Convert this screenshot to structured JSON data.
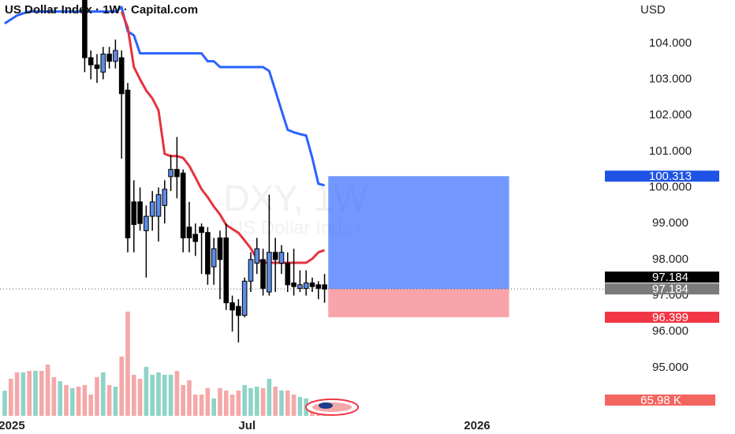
{
  "chart_data": {
    "type": "candlestick",
    "title": "US Dollar Index · 1W · Capital.com",
    "currency": "USD",
    "watermark": [
      "DXY, 1W",
      "US Dollar Index"
    ],
    "xlim": [
      -0.77,
      98.6
    ],
    "xticks": [
      {
        "value": 1.15,
        "label": "2025"
      },
      {
        "value": 39.4,
        "label": "Jul"
      },
      {
        "value": 76.8,
        "label": "2026"
      }
    ],
    "ylim": [
      93.16,
      105.2
    ],
    "yticks": [
      {
        "value": 95,
        "label": "95.000"
      },
      {
        "value": 96,
        "label": "96.000"
      },
      {
        "value": 97,
        "label": "97.000"
      },
      {
        "value": 98,
        "label": "98.000"
      },
      {
        "value": 99,
        "label": "99.000"
      },
      {
        "value": 100,
        "label": "100.000"
      },
      {
        "value": 101,
        "label": "101.000"
      },
      {
        "value": 102,
        "label": "102.000"
      },
      {
        "value": 103,
        "label": "103.000"
      },
      {
        "value": 104,
        "label": "104.000"
      }
    ],
    "up_color": "#5b8ce6",
    "down_color": "#000000",
    "open": [
      null,
      null,
      null,
      null,
      null,
      null,
      null,
      null,
      null,
      null,
      null,
      null,
      null,
      105.5,
      103.6,
      103.4,
      103.2,
      103.7,
      103.5,
      103.6,
      102.7,
      99.6,
      99.6,
      98.8,
      99.2,
      99.2,
      99.5,
      100.3,
      100.5,
      100.4,
      98.9,
      98.7,
      98.9,
      98.75,
      97.8,
      98.6,
      98.6,
      96.8,
      96.7,
      96.45,
      97.4,
      97.9,
      98.0,
      97.1,
      98.2,
      97.9,
      97.9,
      97.35,
      97.2,
      97.2,
      97.35,
      97.3,
      97.3
    ],
    "high": [
      null,
      null,
      null,
      null,
      null,
      null,
      null,
      null,
      null,
      null,
      null,
      null,
      null,
      106.5,
      103.8,
      103.7,
      103.9,
      103.9,
      104.1,
      103.8,
      102.9,
      100.2,
      100.0,
      99.5,
      99.9,
      100.0,
      100.2,
      100.9,
      101.4,
      100.5,
      99.6,
      99.0,
      99.0,
      98.9,
      98.6,
      98.8,
      99.0,
      97.0,
      96.9,
      97.5,
      98.2,
      98.6,
      98.3,
      99.8,
      98.6,
      98.4,
      98.2,
      98.3,
      97.7,
      97.7,
      97.5,
      97.4,
      97.6
    ],
    "low": [
      null,
      null,
      null,
      null,
      null,
      null,
      null,
      null,
      null,
      null,
      null,
      null,
      null,
      103.2,
      103.0,
      102.9,
      103.0,
      103.3,
      103.3,
      100.8,
      98.2,
      98.2,
      98.8,
      97.5,
      98.8,
      98.5,
      99.0,
      99.9,
      99.7,
      98.2,
      98.2,
      98.1,
      97.6,
      97.3,
      97.3,
      96.9,
      96.6,
      96.0,
      95.7,
      96.4,
      97.1,
      97.6,
      97.0,
      97.0,
      97.1,
      97.6,
      97.1,
      97.0,
      97.1,
      97.0,
      97.1,
      96.9,
      96.8
    ],
    "close": [
      null,
      null,
      null,
      null,
      null,
      null,
      null,
      null,
      null,
      null,
      null,
      null,
      null,
      103.6,
      103.4,
      103.3,
      103.7,
      103.5,
      103.8,
      102.6,
      98.6,
      98.97,
      99.0,
      99.2,
      99.6,
      99.8,
      99.95,
      100.5,
      100.3,
      98.6,
      98.6,
      98.5,
      98.75,
      97.6,
      98.3,
      98.0,
      96.8,
      96.6,
      96.45,
      97.4,
      98.0,
      98.3,
      97.2,
      98.2,
      98.0,
      98.2,
      97.3,
      97.25,
      97.3,
      97.35,
      97.25,
      97.2,
      97.18
    ],
    "volume": [
      105,
      155,
      182,
      182,
      188,
      188,
      188,
      215,
      162,
      145,
      129,
      116,
      122,
      129,
      89,
      162,
      182,
      129,
      122,
      248,
      436,
      172,
      155,
      205,
      172,
      182,
      172,
      172,
      188,
      129,
      149,
      89,
      89,
      116,
      73,
      116,
      106,
      89,
      106,
      129,
      116,
      122,
      116,
      155,
      122,
      106,
      106,
      89,
      79,
      73,
      56,
      66,
      66
    ],
    "volume_colors": [
      "#8fd3c7",
      "#f5a8a8",
      "#f5a8a8",
      "#8fd3c7",
      "#f5a8a8",
      "#8fd3c7",
      "#f5a8a8",
      "#f5a8a8",
      "#f5a8a8",
      "#8fd3c7",
      "#f5a8a8",
      "#8fd3c7",
      "#f5a8a8",
      "#f5a8a8",
      "#f5a8a8",
      "#f5a8a8",
      "#8fd3c7",
      "#f5a8a8",
      "#8fd3c7",
      "#f5a8a8",
      "#f5a8a8",
      "#f5a8a8",
      "#f5a8a8",
      "#8fd3c7",
      "#8fd3c7",
      "#8fd3c7",
      "#8fd3c7",
      "#8fd3c7",
      "#f5a8a8",
      "#f5a8a8",
      "#f5a8a8",
      "#f5a8a8",
      "#f5a8a8",
      "#f5a8a8",
      "#8fd3c7",
      "#f5a8a8",
      "#f5a8a8",
      "#f5a8a8",
      "#f5a8a8",
      "#8fd3c7",
      "#8fd3c7",
      "#8fd3c7",
      "#f5a8a8",
      "#8fd3c7",
      "#f5a8a8",
      "#8fd3c7",
      "#f5a8a8",
      "#f5a8a8",
      "#8fd3c7",
      "#8fd3c7",
      "#f5a8a8",
      "#f5a8a8",
      "#f5a8a8"
    ],
    "vlim": [
      0,
      1739
    ],
    "lines": [
      {
        "color": "#2962ff",
        "values": [
          104.55,
          104.66,
          104.77,
          104.83,
          104.88,
          104.88,
          104.88,
          104.88,
          104.88,
          104.88,
          104.88,
          104.88,
          104.88,
          104.88,
          104.88,
          104.88,
          104.88,
          104.88,
          104.88,
          105.0,
          104.33,
          104.22,
          103.72,
          103.72,
          103.72,
          103.72,
          103.72,
          103.72,
          103.72,
          103.72,
          103.72,
          103.72,
          103.72,
          103.5,
          103.5,
          103.34,
          103.34,
          103.34,
          103.34,
          103.34,
          103.34,
          103.34,
          103.34,
          103.23,
          102.69,
          102.14,
          101.6,
          101.53,
          101.48,
          101.44,
          100.82,
          100.1,
          100.06
        ]
      },
      {
        "color": "#e5333f",
        "values": [
          null,
          null,
          null,
          null,
          null,
          null,
          null,
          null,
          null,
          null,
          null,
          null,
          null,
          null,
          null,
          null,
          null,
          null,
          null,
          104.88,
          104.44,
          103.34,
          103.0,
          102.69,
          102.47,
          102.14,
          100.93,
          100.87,
          100.87,
          100.82,
          100.6,
          100.28,
          99.95,
          99.73,
          99.47,
          99.25,
          98.96,
          98.85,
          98.74,
          98.53,
          98.31,
          98.02,
          97.91,
          97.91,
          97.91,
          97.91,
          97.91,
          97.91,
          97.91,
          97.91,
          98.02,
          98.2,
          98.26
        ]
      }
    ],
    "position": {
      "x": [
        52.6,
        82
      ],
      "target": 100.313,
      "entry": 97.184,
      "stop": 96.399,
      "profit_color": "rgba(41,98,255,0.66)",
      "loss_color": "rgba(242,54,69,0.45)"
    },
    "price_labels": [
      {
        "value": 100.313,
        "label": "100.313",
        "color": "#1e53e5"
      },
      {
        "value": 97.184,
        "label": "97.184",
        "color": "#000000"
      },
      {
        "value": 97.184,
        "label": "97.184",
        "color": "#7a7a7a"
      },
      {
        "value": 96.399,
        "label": "96.399",
        "color": "#f23645"
      }
    ],
    "volume_label": {
      "value": 65.98,
      "label": "65.98 K",
      "color": "#f5655f"
    }
  }
}
